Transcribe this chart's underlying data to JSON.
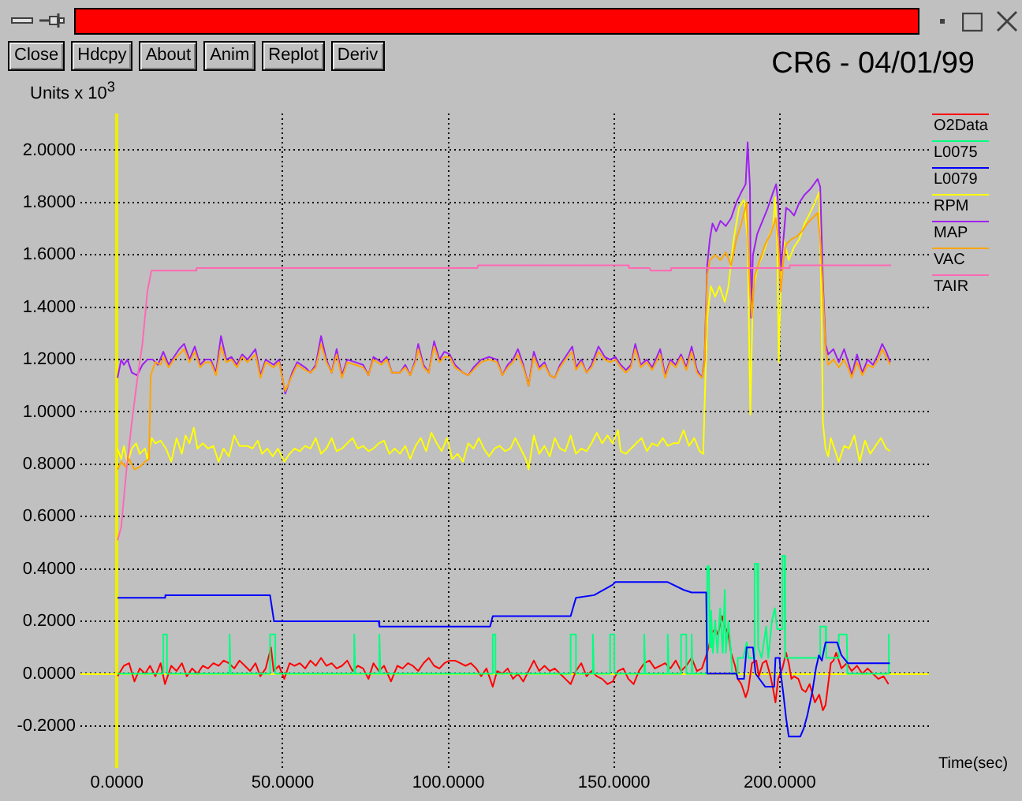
{
  "chart_data": {
    "type": "line",
    "title": "CR6 - 04/01/99",
    "ylabel": "Units x 10$^{3}$",
    "xlabel": "Time(sec)",
    "annotations": [
      "Close",
      "Hdcpy",
      "About",
      "Anim",
      "Replot",
      "Deriv"
    ],
    "xlim": [
      -11,
      245
    ],
    "ylim": [
      -0.36,
      2.14
    ],
    "xticks": [
      {
        "value": 0,
        "label": "0.0000"
      },
      {
        "value": 50,
        "label": "50.0000"
      },
      {
        "value": 100,
        "label": "100.0000"
      },
      {
        "value": 150,
        "label": "150.0000"
      },
      {
        "value": 200,
        "label": "200.0000"
      }
    ],
    "yticks": [
      {
        "value": -0.2,
        "label": "-0.2000"
      },
      {
        "value": 0,
        "label": "0.0000"
      },
      {
        "value": 0.2,
        "label": "0.2000"
      },
      {
        "value": 0.4,
        "label": "0.4000"
      },
      {
        "value": 0.6,
        "label": "0.6000"
      },
      {
        "value": 0.8,
        "label": "0.8000"
      },
      {
        "value": 1,
        "label": "1.0000"
      },
      {
        "value": 1.2,
        "label": "1.2000"
      },
      {
        "value": 1.4,
        "label": "1.4000"
      },
      {
        "value": 1.6,
        "label": "1.6000"
      },
      {
        "value": 1.8,
        "label": "1.8000"
      },
      {
        "value": 2,
        "label": "2.0000"
      }
    ],
    "grid": true,
    "legend": "top right",
    "marker": "none",
    "ref_lines": [
      {
        "axis": "y",
        "value": 0,
        "color": "#ffff00"
      }
    ],
    "series": [
      {
        "name": "O2Data",
        "color": "#ff0000",
        "x": [
          0.2,
          2.1,
          3.7,
          5.3,
          6.9,
          8.5,
          10.0,
          11.6,
          13.2,
          14.5,
          16.4,
          18.0,
          19.6,
          21.1,
          22.7,
          24.3,
          25.9,
          27.5,
          29.1,
          30.7,
          32.2,
          33.8,
          35.4,
          37.0,
          38.6,
          40.2,
          41.8,
          43.3,
          44.9,
          46.5,
          47.3,
          48.9,
          50.5,
          52.1,
          53.6,
          55.2,
          56.8,
          58.4,
          60.0,
          61.6,
          63.2,
          64.8,
          66.3,
          67.9,
          69.5,
          71.1,
          72.7,
          74.3,
          75.9,
          77.4,
          79.0,
          80.6,
          82.7,
          84.6,
          86.2,
          87.8,
          89.3,
          90.9,
          92.5,
          94.1,
          95.7,
          97.3,
          98.8,
          100.4,
          102.0,
          103.6,
          105.2,
          106.8,
          108.4,
          109.9,
          111.5,
          113.4,
          114.7,
          116.3,
          117.9,
          119.5,
          121.0,
          122.6,
          124.2,
          125.8,
          127.4,
          129.0,
          130.6,
          132.1,
          133.7,
          135.3,
          136.9,
          138.5,
          140.1,
          141.7,
          143.2,
          144.8,
          146.4,
          148.0,
          149.6,
          151.2,
          152.8,
          154.3,
          155.9,
          157.5,
          159.1,
          160.7,
          162.3,
          163.9,
          165.4,
          167.0,
          168.6,
          170.2,
          171.8,
          173.4,
          175.0,
          176.5,
          178.1,
          179.7,
          180.5,
          181.3,
          182.6,
          183.4,
          184.5,
          185.3,
          186.5,
          187.3,
          188.4,
          189.7,
          190.5,
          191.6,
          192.9,
          193.7,
          194.8,
          195.9,
          197.2,
          198.0,
          198.7,
          199.5,
          200.8,
          201.9,
          202.7,
          203.5,
          204.3,
          205.6,
          206.7,
          207.8,
          209.0,
          210.6,
          211.9,
          213.0,
          213.8,
          214.6,
          215.4,
          216.2,
          217.0,
          218.6,
          220.2,
          221.7,
          223.3,
          224.9,
          226.5,
          228.1,
          229.7,
          231.3,
          232.8
        ],
        "values": [
          -0.01,
          0.03,
          0.04,
          -0.03,
          0.02,
          0.0,
          0.03,
          -0.01,
          0.04,
          -0.04,
          0.03,
          0.01,
          0.04,
          -0.01,
          0.02,
          0.0,
          0.03,
          0.02,
          0.04,
          0.03,
          0.05,
          0.04,
          0.02,
          0.05,
          0.03,
          0.01,
          0.04,
          -0.01,
          0.02,
          0.1,
          0.01,
          0.03,
          -0.02,
          0.04,
          0.03,
          0.04,
          0.02,
          0.05,
          0.03,
          0.06,
          0.03,
          0.04,
          0.02,
          0.03,
          0.05,
          0.01,
          0.03,
          0.02,
          -0.02,
          0.04,
          0.01,
          0.03,
          -0.03,
          0.03,
          0.02,
          0.04,
          0.03,
          0.01,
          0.04,
          0.06,
          0.03,
          0.02,
          0.04,
          0.05,
          0.05,
          0.04,
          0.03,
          0.04,
          0.02,
          -0.01,
          0.02,
          -0.05,
          0.01,
          0.0,
          0.02,
          -0.02,
          0.0,
          -0.03,
          0.01,
          0.05,
          0.01,
          0.03,
          0.01,
          0.02,
          0.0,
          -0.02,
          -0.04,
          0.01,
          0.04,
          -0.01,
          0.01,
          -0.01,
          -0.02,
          -0.04,
          -0.03,
          0.01,
          0.02,
          -0.02,
          -0.04,
          0.01,
          0.04,
          0.05,
          0.02,
          0.03,
          0.04,
          0.02,
          0.05,
          0.01,
          0.03,
          0.06,
          0.01,
          0.02,
          0.08,
          0.16,
          0.17,
          0.15,
          0.22,
          0.18,
          0.15,
          0.08,
          0.03,
          -0.02,
          -0.04,
          -0.09,
          -0.06,
          0.04,
          0.05,
          -0.01,
          0.04,
          0.05,
          -0.01,
          -0.06,
          -0.11,
          -0.02,
          0.02,
          0.08,
          0.04,
          -0.02,
          -0.01,
          -0.02,
          -0.06,
          -0.07,
          -0.04,
          -0.11,
          -0.08,
          -0.14,
          -0.12,
          -0.04,
          0.04,
          0.05,
          0.08,
          0.02,
          0.04,
          0.01,
          0.03,
          0.0,
          0.02,
          0.0,
          -0.02,
          -0.01,
          -0.04
        ]
      },
      {
        "name": "L0075",
        "color": "#00ff7f",
        "x": [
          0.2,
          14.0,
          14.0,
          15.1,
          15.1,
          34.0,
          34.0,
          34.3,
          46.2,
          46.2,
          47.8,
          47.8,
          71.6,
          71.6,
          71.9,
          79.2,
          79.2,
          79.5,
          113.4,
          113.4,
          114.2,
          114.2,
          136.9,
          136.9,
          138.5,
          138.5,
          143.6,
          143.6,
          143.9,
          148.8,
          148.8,
          150.1,
          150.1,
          159.1,
          159.1,
          159.4,
          166.2,
          166.2,
          166.5,
          170.2,
          170.2,
          171.8,
          171.8,
          173.4,
          173.4,
          173.7,
          178.1,
          178.1,
          178.6,
          178.9,
          179.3,
          179.8,
          180.5,
          181.2,
          182.0,
          182.8,
          183.4,
          183.7,
          184.5,
          185.3,
          185.6,
          187.0,
          187.3,
          189.0,
          190.0,
          190.5,
          192.4,
          192.4,
          193.2,
          193.5,
          194.5,
          195.9,
          196.5,
          197.6,
          198.5,
          199.2,
          200.8,
          200.8,
          201.4,
          201.6,
          212.2,
          212.2,
          213.8,
          214.0,
          217.8,
          217.8,
          220.2,
          220.4,
          232.8,
          232.8,
          233.0
        ],
        "values": [
          0,
          0,
          0.15,
          0.15,
          0,
          0,
          0.15,
          0,
          0,
          0.15,
          0.15,
          0,
          0,
          0.15,
          0,
          0,
          0.15,
          0,
          0,
          0.15,
          0.15,
          0,
          0,
          0.15,
          0.15,
          0,
          0,
          0.15,
          0,
          0,
          0.15,
          0.15,
          0,
          0,
          0.15,
          0,
          0,
          0.15,
          0,
          0,
          0.15,
          0.15,
          0,
          0,
          0.15,
          0,
          0,
          0.41,
          0.41,
          0.1,
          0.24,
          0.08,
          0.2,
          0.08,
          0.25,
          0.08,
          0.32,
          0.08,
          0.2,
          0.08,
          0,
          0,
          0.06,
          0.06,
          0.12,
          0.06,
          0.06,
          0.42,
          0.42,
          0.1,
          0.06,
          0.18,
          0.06,
          0.2,
          0.25,
          0.17,
          0.17,
          0.45,
          0.45,
          0.06,
          0.06,
          0.18,
          0.18,
          0.06,
          0.06,
          0.15,
          0.15,
          0,
          0,
          0.15,
          0
        ]
      },
      {
        "name": "L0079",
        "color": "#0000ff",
        "x": [
          0.2,
          14.5,
          14.6,
          46.2,
          46.8,
          47.4,
          79.0,
          79.2,
          112.6,
          113.4,
          136.9,
          138.5,
          144.0,
          149.6,
          150.4,
          166.2,
          171.0,
          173.4,
          177.8,
          178.1,
          186.9,
          187.3,
          189.2,
          190.0,
          191.9,
          192.7,
          195.6,
          198.3,
          198.7,
          199.9,
          200.3,
          201.1,
          201.9,
          202.7,
          206.2,
          207.2,
          208.3,
          209.8,
          210.9,
          211.8,
          212.7,
          213.8,
          217.3,
          218.6,
          220.5,
          233.2
        ],
        "values": [
          0.29,
          0.29,
          0.3,
          0.3,
          0.25,
          0.2,
          0.2,
          0.18,
          0.18,
          0.22,
          0.22,
          0.29,
          0.3,
          0.34,
          0.35,
          0.35,
          0.32,
          0.31,
          0.31,
          0.0,
          0.0,
          -0.02,
          -0.02,
          0.1,
          0.1,
          0.0,
          -0.05,
          -0.05,
          0.06,
          0.06,
          0.0,
          -0.08,
          -0.17,
          -0.24,
          -0.24,
          -0.21,
          -0.16,
          -0.07,
          0.02,
          0.07,
          0.05,
          0.12,
          0.12,
          0.07,
          0.04,
          0.04
        ]
      },
      {
        "name": "RPM",
        "color": "#ffff00",
        "x": [
          0.2,
          1.3,
          2.1,
          3.2,
          4.5,
          5.8,
          6.9,
          8.5,
          9.2,
          10.5,
          11.6,
          13.2,
          14.8,
          16.4,
          18.0,
          19.6,
          20.7,
          21.9,
          23.2,
          24.3,
          25.9,
          27.5,
          29.1,
          30.7,
          32.2,
          33.8,
          35.4,
          37.0,
          39.4,
          40.9,
          42.5,
          43.8,
          45.4,
          47.0,
          48.6,
          50.5,
          52.1,
          53.6,
          55.2,
          56.8,
          58.4,
          60.0,
          61.6,
          63.2,
          64.8,
          66.3,
          67.9,
          69.5,
          71.1,
          72.7,
          74.3,
          75.9,
          77.4,
          79.0,
          80.6,
          82.2,
          83.8,
          85.4,
          87.0,
          88.5,
          90.1,
          91.7,
          93.3,
          94.9,
          96.5,
          98.0,
          99.6,
          101.2,
          102.8,
          104.4,
          106.0,
          107.6,
          109.2,
          110.7,
          112.3,
          113.9,
          115.5,
          117.1,
          118.7,
          120.2,
          121.8,
          123.4,
          124.2,
          125.8,
          127.4,
          129.0,
          130.6,
          132.1,
          133.7,
          135.3,
          136.9,
          138.5,
          140.1,
          141.7,
          143.2,
          144.8,
          146.4,
          148.0,
          149.6,
          151.2,
          152.0,
          153.6,
          155.1,
          156.7,
          158.3,
          159.9,
          161.5,
          163.1,
          164.7,
          166.2,
          167.8,
          169.4,
          171.0,
          172.6,
          174.2,
          175.8,
          176.9,
          177.3,
          178.1,
          179.2,
          180.5,
          181.8,
          183.4,
          184.5,
          186.1,
          187.7,
          189.2,
          190.3,
          191.1,
          191.9,
          193.2,
          194.8,
          196.4,
          198.0,
          198.6,
          199.2,
          199.7,
          200.3,
          201.1,
          202.7,
          204.3,
          205.9,
          207.5,
          209.1,
          210.6,
          211.9,
          212.5,
          213.0,
          213.8,
          214.6,
          215.4,
          217.0,
          217.8,
          219.4,
          220.9,
          222.5,
          224.1,
          225.7,
          227.3,
          228.9,
          230.5,
          232.1,
          233.3
        ],
        "values": [
          0.86,
          0.82,
          0.87,
          0.8,
          0.86,
          0.88,
          0.84,
          0.86,
          0.82,
          0.9,
          0.88,
          0.89,
          0.86,
          0.81,
          0.9,
          0.84,
          0.91,
          0.88,
          0.94,
          0.86,
          0.88,
          0.86,
          0.87,
          0.81,
          0.86,
          0.83,
          0.91,
          0.87,
          0.87,
          0.86,
          0.89,
          0.84,
          0.86,
          0.83,
          0.86,
          0.81,
          0.84,
          0.86,
          0.85,
          0.87,
          0.86,
          0.9,
          0.84,
          0.86,
          0.9,
          0.85,
          0.86,
          0.88,
          0.9,
          0.86,
          0.87,
          0.85,
          0.86,
          0.88,
          0.89,
          0.84,
          0.86,
          0.84,
          0.87,
          0.82,
          0.87,
          0.9,
          0.85,
          0.92,
          0.88,
          0.85,
          0.9,
          0.82,
          0.84,
          0.81,
          0.88,
          0.86,
          0.9,
          0.86,
          0.83,
          0.86,
          0.87,
          0.85,
          0.86,
          0.9,
          0.86,
          0.82,
          0.78,
          0.91,
          0.84,
          0.87,
          0.83,
          0.9,
          0.86,
          0.85,
          0.91,
          0.84,
          0.86,
          0.85,
          0.88,
          0.92,
          0.88,
          0.91,
          0.88,
          0.93,
          0.85,
          0.84,
          0.86,
          0.88,
          0.9,
          0.85,
          0.88,
          0.87,
          0.9,
          0.87,
          0.88,
          0.88,
          0.93,
          0.87,
          0.9,
          0.85,
          0.84,
          1.02,
          1.36,
          1.48,
          1.44,
          1.48,
          1.42,
          1.48,
          1.66,
          1.78,
          1.81,
          1.66,
          0.99,
          1.46,
          1.55,
          1.6,
          1.66,
          1.71,
          1.82,
          1.66,
          1.19,
          1.5,
          1.66,
          1.58,
          1.63,
          1.66,
          1.72,
          1.76,
          1.8,
          1.84,
          1.46,
          0.96,
          0.86,
          0.83,
          0.9,
          0.84,
          0.81,
          0.87,
          0.86,
          0.91,
          0.81,
          0.89,
          0.84,
          0.87,
          0.9,
          0.86,
          0.85
        ]
      },
      {
        "name": "MAP",
        "color": "#a020f0",
        "x": [
          0.2,
          1.3,
          2.1,
          3.2,
          4.5,
          6.1,
          7.7,
          9.2,
          10.8,
          12.4,
          14.0,
          15.6,
          17.2,
          18.8,
          20.3,
          21.9,
          23.5,
          25.1,
          26.7,
          28.3,
          29.9,
          31.4,
          33.0,
          34.6,
          36.2,
          37.8,
          39.4,
          41.8,
          43.3,
          44.9,
          47.3,
          48.9,
          50.8,
          52.9,
          54.4,
          56.8,
          58.4,
          60.0,
          61.6,
          63.2,
          64.8,
          66.3,
          67.9,
          69.5,
          71.9,
          74.3,
          75.9,
          77.4,
          79.8,
          81.4,
          83.0,
          85.4,
          87.0,
          88.5,
          90.1,
          90.9,
          92.5,
          94.1,
          95.7,
          97.3,
          98.8,
          100.4,
          102.0,
          104.4,
          106.0,
          107.6,
          109.9,
          112.3,
          114.7,
          116.3,
          117.9,
          119.5,
          121.0,
          122.6,
          124.2,
          125.8,
          127.4,
          129.0,
          130.6,
          132.1,
          133.7,
          135.3,
          137.4,
          138.5,
          140.1,
          141.7,
          143.2,
          145.3,
          147.2,
          148.8,
          150.4,
          152.0,
          153.6,
          155.1,
          156.4,
          158.0,
          159.9,
          161.5,
          163.9,
          165.4,
          167.0,
          168.6,
          170.2,
          171.8,
          173.4,
          175.0,
          176.5,
          177.3,
          178.1,
          178.9,
          179.7,
          180.8,
          182.1,
          183.7,
          185.3,
          186.9,
          188.4,
          189.7,
          190.3,
          191.0,
          191.3,
          191.9,
          193.2,
          194.8,
          196.4,
          198.0,
          198.9,
          199.5,
          200.3,
          201.1,
          201.9,
          203.0,
          204.3,
          205.9,
          207.5,
          209.1,
          210.3,
          211.4,
          212.2,
          213.0,
          213.8,
          214.6,
          216.2,
          217.8,
          219.4,
          220.9,
          221.7,
          223.3,
          224.9,
          226.5,
          228.1,
          229.7,
          230.9,
          232.1,
          233.3
        ],
        "values": [
          1.13,
          1.2,
          1.18,
          1.2,
          1.15,
          1.14,
          1.18,
          1.2,
          1.2,
          1.18,
          1.23,
          1.18,
          1.21,
          1.24,
          1.26,
          1.2,
          1.25,
          1.18,
          1.2,
          1.2,
          1.15,
          1.29,
          1.2,
          1.21,
          1.18,
          1.22,
          1.2,
          1.24,
          1.14,
          1.2,
          1.18,
          1.2,
          1.07,
          1.15,
          1.19,
          1.17,
          1.15,
          1.18,
          1.29,
          1.2,
          1.15,
          1.24,
          1.14,
          1.2,
          1.19,
          1.18,
          1.14,
          1.21,
          1.19,
          1.21,
          1.15,
          1.15,
          1.18,
          1.14,
          1.2,
          1.26,
          1.18,
          1.15,
          1.27,
          1.2,
          1.23,
          1.22,
          1.18,
          1.15,
          1.14,
          1.17,
          1.2,
          1.21,
          1.2,
          1.14,
          1.18,
          1.2,
          1.24,
          1.18,
          1.1,
          1.23,
          1.17,
          1.19,
          1.14,
          1.13,
          1.18,
          1.21,
          1.25,
          1.17,
          1.2,
          1.15,
          1.18,
          1.25,
          1.21,
          1.2,
          1.21,
          1.18,
          1.16,
          1.18,
          1.26,
          1.18,
          1.2,
          1.17,
          1.24,
          1.14,
          1.2,
          1.18,
          1.22,
          1.17,
          1.25,
          1.16,
          1.13,
          1.2,
          1.56,
          1.66,
          1.72,
          1.69,
          1.73,
          1.71,
          1.74,
          1.8,
          1.84,
          1.87,
          2.03,
          1.86,
          1.36,
          1.6,
          1.68,
          1.73,
          1.78,
          1.84,
          1.87,
          1.8,
          1.54,
          1.66,
          1.78,
          1.77,
          1.75,
          1.8,
          1.83,
          1.85,
          1.87,
          1.89,
          1.86,
          1.5,
          1.26,
          1.22,
          1.24,
          1.19,
          1.24,
          1.18,
          1.14,
          1.22,
          1.15,
          1.2,
          1.18,
          1.22,
          1.26,
          1.23,
          1.19
        ]
      },
      {
        "name": "VAC",
        "color": "#ffa500",
        "x": [
          0.2,
          1.3,
          2.6,
          3.7,
          5.3,
          6.9,
          8.5,
          9.7,
          10.2,
          11.6,
          13.2,
          14.0,
          15.6,
          17.2,
          18.8,
          20.3,
          21.9,
          23.5,
          25.1,
          26.7,
          28.3,
          29.9,
          31.4,
          33.0,
          34.6,
          36.2,
          37.8,
          39.4,
          41.8,
          43.3,
          44.9,
          47.3,
          48.9,
          50.8,
          52.9,
          54.4,
          56.8,
          58.4,
          60.0,
          61.6,
          63.2,
          64.8,
          66.3,
          67.9,
          69.5,
          71.9,
          74.3,
          75.9,
          77.4,
          79.8,
          81.4,
          83.0,
          85.4,
          87.0,
          88.5,
          90.1,
          90.9,
          92.5,
          94.1,
          95.7,
          97.3,
          98.8,
          100.4,
          102.0,
          104.4,
          106.0,
          107.6,
          109.9,
          112.3,
          114.7,
          116.3,
          117.9,
          119.5,
          121.0,
          122.6,
          124.2,
          125.8,
          127.4,
          129.0,
          130.6,
          132.1,
          133.7,
          135.3,
          137.4,
          138.5,
          140.1,
          141.7,
          143.2,
          145.3,
          147.2,
          148.8,
          150.4,
          152.0,
          153.6,
          155.1,
          156.4,
          158.0,
          159.9,
          161.5,
          163.9,
          165.4,
          167.0,
          168.6,
          170.2,
          171.8,
          173.4,
          175.0,
          176.5,
          177.3,
          178.1,
          178.9,
          180.5,
          182.1,
          183.7,
          185.3,
          186.9,
          188.4,
          190.0,
          191.0,
          191.6,
          192.4,
          194.0,
          195.6,
          197.2,
          198.8,
          199.5,
          200.3,
          201.1,
          201.9,
          203.5,
          205.1,
          206.7,
          208.3,
          209.8,
          211.4,
          212.2,
          213.0,
          213.8,
          214.6,
          216.2,
          217.8,
          219.4,
          220.9,
          221.7,
          223.3,
          224.9,
          226.5,
          228.1,
          229.7,
          230.9,
          232.1,
          233.3
        ],
        "values": [
          0.78,
          0.81,
          0.79,
          0.82,
          0.78,
          0.79,
          0.81,
          0.82,
          1.14,
          1.19,
          1.18,
          1.21,
          1.17,
          1.2,
          1.22,
          1.24,
          1.19,
          1.23,
          1.17,
          1.19,
          1.19,
          1.14,
          1.25,
          1.19,
          1.2,
          1.17,
          1.21,
          1.19,
          1.22,
          1.13,
          1.19,
          1.17,
          1.19,
          1.08,
          1.14,
          1.18,
          1.16,
          1.15,
          1.17,
          1.26,
          1.19,
          1.15,
          1.22,
          1.13,
          1.19,
          1.18,
          1.17,
          1.14,
          1.2,
          1.18,
          1.2,
          1.15,
          1.15,
          1.17,
          1.14,
          1.19,
          1.24,
          1.17,
          1.15,
          1.25,
          1.19,
          1.21,
          1.21,
          1.17,
          1.15,
          1.14,
          1.16,
          1.19,
          1.2,
          1.19,
          1.14,
          1.17,
          1.19,
          1.22,
          1.17,
          1.1,
          1.21,
          1.16,
          1.18,
          1.14,
          1.13,
          1.17,
          1.2,
          1.23,
          1.16,
          1.19,
          1.15,
          1.17,
          1.23,
          1.2,
          1.19,
          1.2,
          1.17,
          1.15,
          1.17,
          1.24,
          1.17,
          1.19,
          1.16,
          1.22,
          1.13,
          1.19,
          1.17,
          1.21,
          1.16,
          1.23,
          1.15,
          1.13,
          1.19,
          1.52,
          1.58,
          1.6,
          1.58,
          1.61,
          1.56,
          1.66,
          1.72,
          1.8,
          1.46,
          1.36,
          1.52,
          1.58,
          1.64,
          1.68,
          1.74,
          1.66,
          1.46,
          1.58,
          1.64,
          1.66,
          1.67,
          1.69,
          1.72,
          1.74,
          1.76,
          1.66,
          1.46,
          1.24,
          1.18,
          1.2,
          1.17,
          1.2,
          1.16,
          1.13,
          1.19,
          1.14,
          1.18,
          1.17,
          1.2,
          1.24,
          1.21,
          1.18
        ]
      },
      {
        "name": "TAIR",
        "color": "#ff69b4",
        "x": [
          0.2,
          1.3,
          2.9,
          4.5,
          6.1,
          7.7,
          9.2,
          10.4,
          23.8,
          24.0,
          108.8,
          109.0,
          154.3,
          154.5,
          160.7,
          161.0,
          167.0,
          167.2,
          202.7,
          203.0,
          233.6
        ],
        "values": [
          0.51,
          0.56,
          0.78,
          0.96,
          1.12,
          1.26,
          1.46,
          1.54,
          1.54,
          1.55,
          1.55,
          1.56,
          1.56,
          1.55,
          1.55,
          1.54,
          1.54,
          1.55,
          1.55,
          1.56,
          1.56
        ]
      }
    ]
  }
}
